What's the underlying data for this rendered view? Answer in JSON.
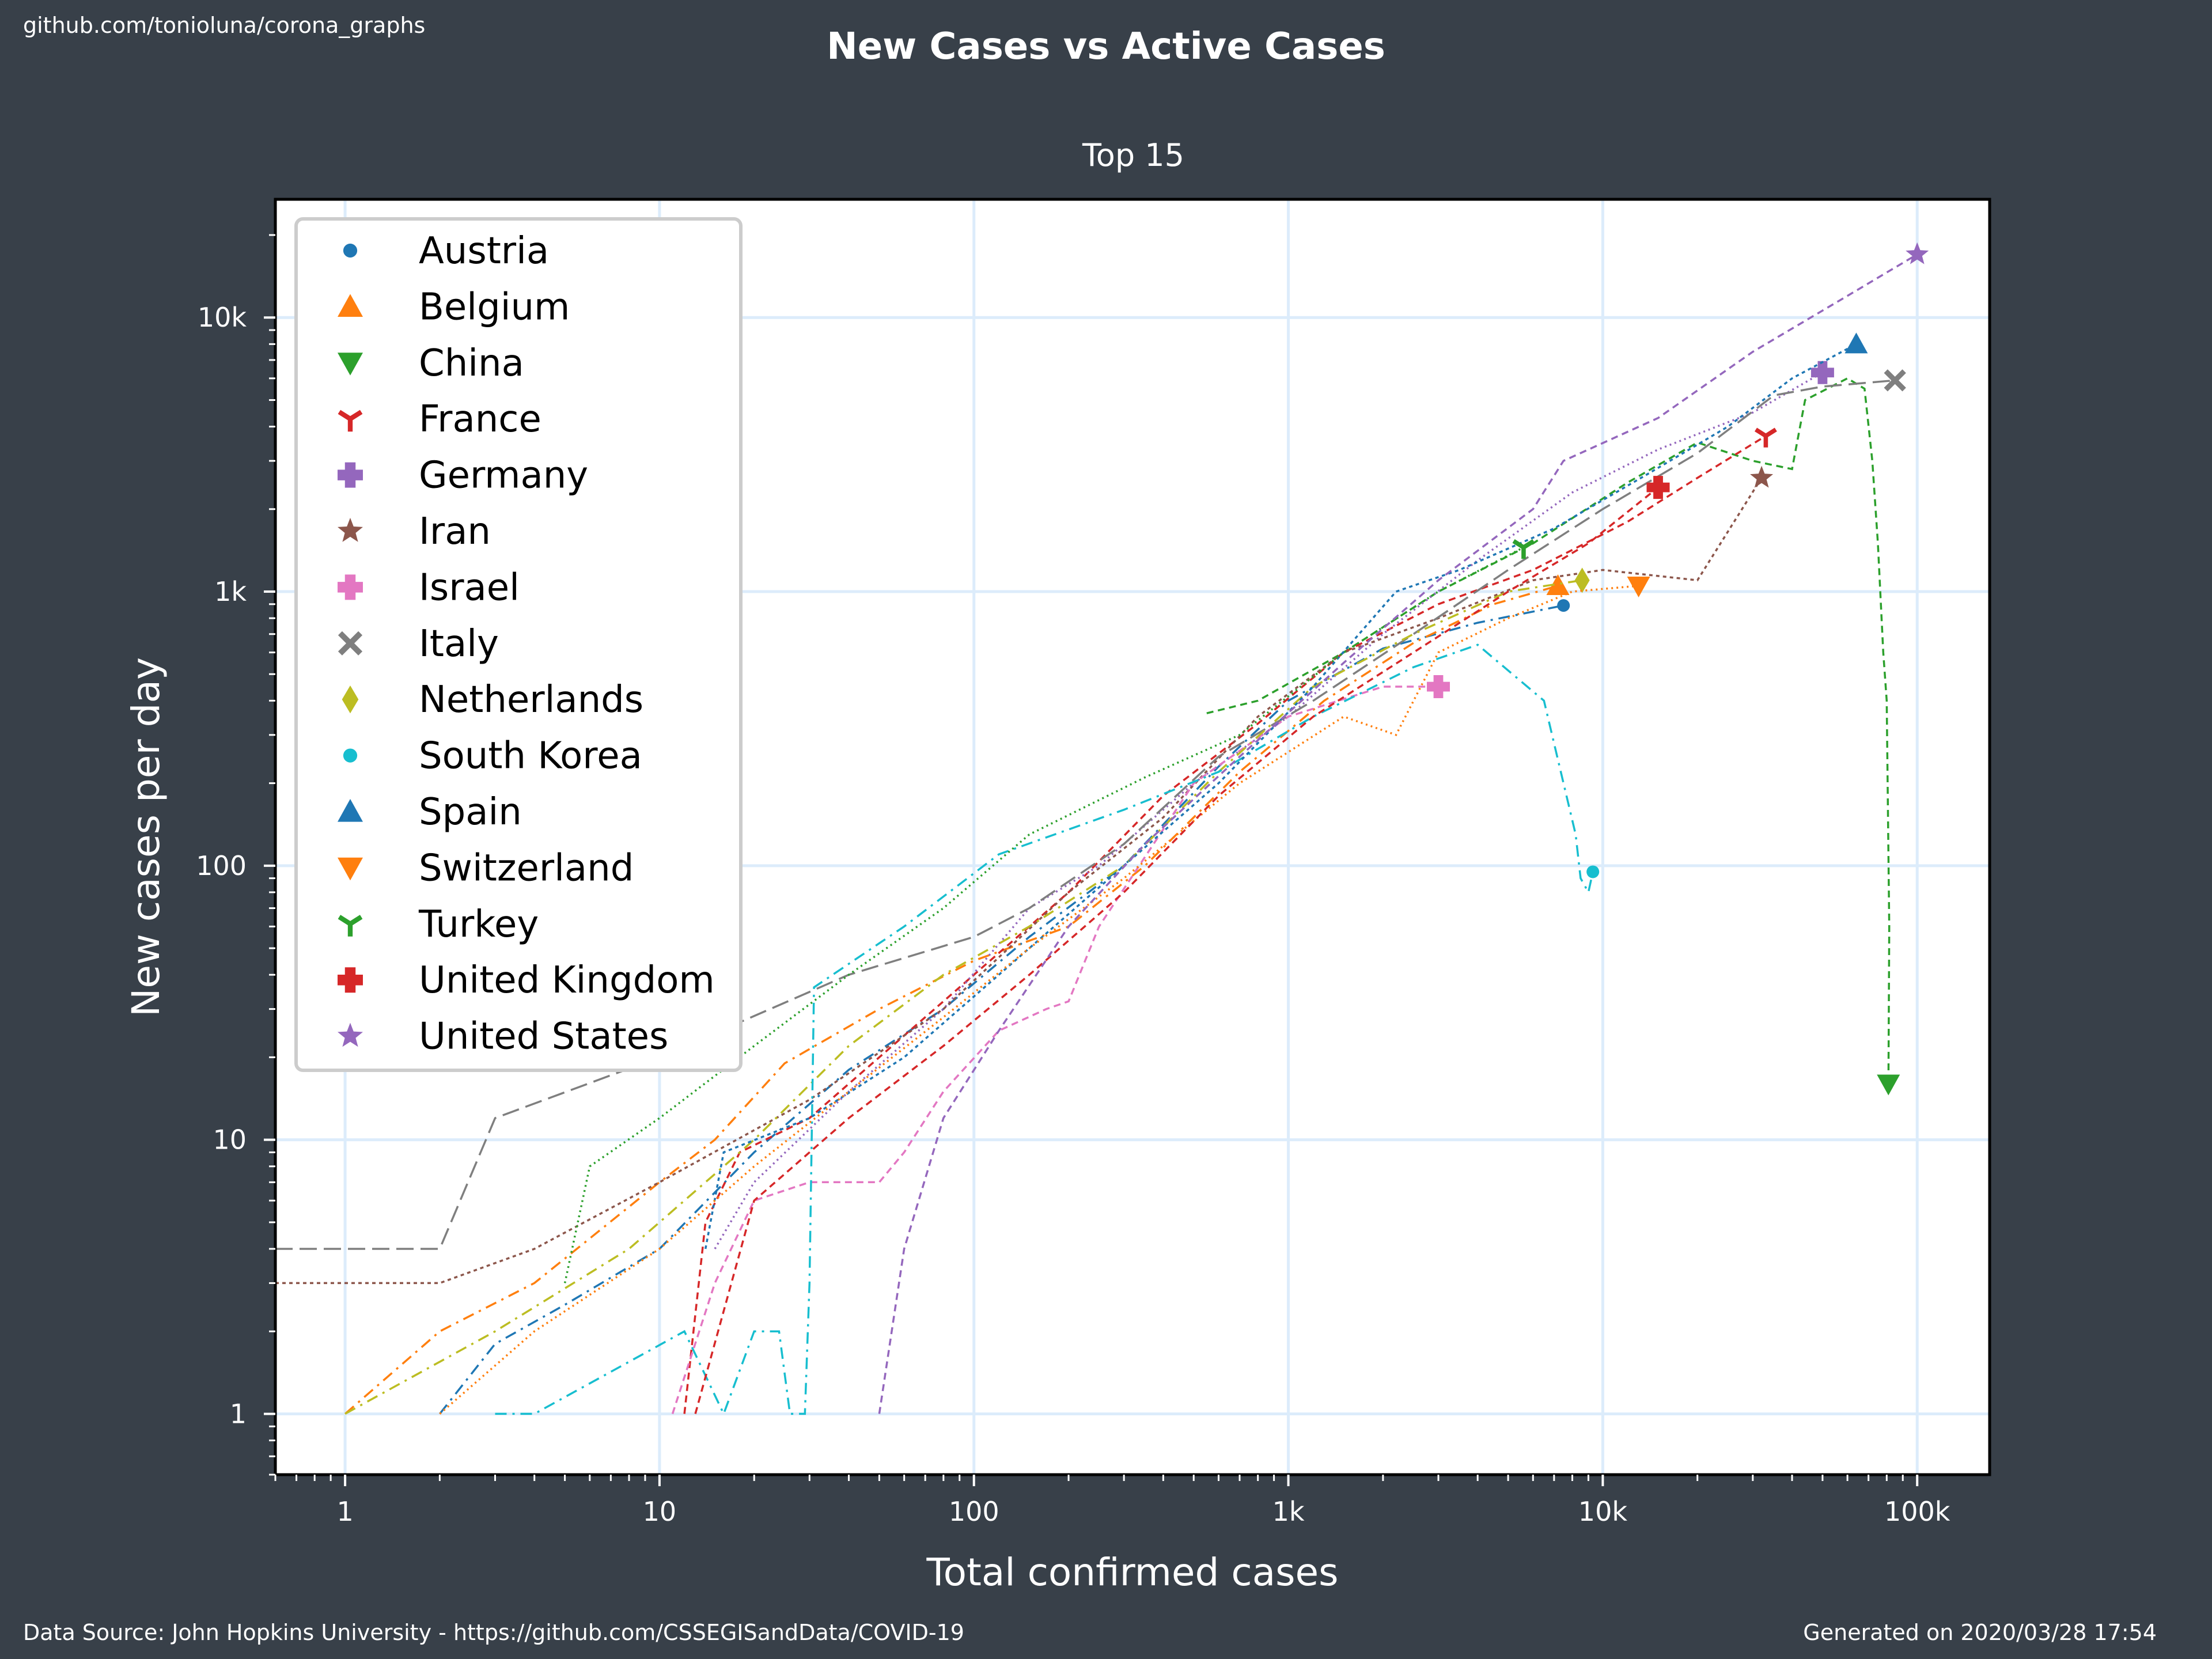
{
  "header": {
    "source_link": "github.com/tonioluna/corona_graphs",
    "title": "New Cases vs Active Cases",
    "subtitle": "Top 15"
  },
  "footer": {
    "data_source": "Data Source: John Hopkins University - https://github.com/CSSEGISandData/COVID-19",
    "generated": "Generated on 2020/03/28 17:54"
  },
  "chart_data": {
    "type": "line",
    "xlabel": "Total confirmed cases",
    "ylabel": "New cases per day",
    "xscale": "log",
    "yscale": "log",
    "xlim": [
      0.6,
      170000
    ],
    "ylim": [
      0.6,
      27000
    ],
    "x_ticks": [
      {
        "value": 1,
        "label": "1"
      },
      {
        "value": 10,
        "label": "10"
      },
      {
        "value": 100,
        "label": "100"
      },
      {
        "value": 1000,
        "label": "1k"
      },
      {
        "value": 10000,
        "label": "10k"
      },
      {
        "value": 100000,
        "label": "100k"
      }
    ],
    "y_ticks": [
      {
        "value": 1,
        "label": "1"
      },
      {
        "value": 10,
        "label": "10"
      },
      {
        "value": 100,
        "label": "100"
      },
      {
        "value": 1000,
        "label": "1k"
      },
      {
        "value": 10000,
        "label": "10k"
      }
    ],
    "grid": true,
    "legend_position": "top-left",
    "series": [
      {
        "name": "Austria",
        "color": "#1f77b4",
        "marker": "circle",
        "dash": "20,10,4,10",
        "points": [
          [
            2,
            1
          ],
          [
            3,
            1.8
          ],
          [
            5,
            2.5
          ],
          [
            10,
            4
          ],
          [
            20,
            9
          ],
          [
            40,
            18
          ],
          [
            80,
            30
          ],
          [
            150,
            55
          ],
          [
            300,
            100
          ],
          [
            600,
            230
          ],
          [
            1000,
            400
          ],
          [
            2000,
            620
          ],
          [
            4000,
            770
          ],
          [
            7500,
            890
          ]
        ]
      },
      {
        "name": "Belgium",
        "color": "#ff7f0e",
        "marker": "triangle-up",
        "dash": "20,10,4,10",
        "points": [
          [
            1,
            1
          ],
          [
            2,
            2
          ],
          [
            4,
            3
          ],
          [
            10,
            7
          ],
          [
            15,
            10
          ],
          [
            25,
            19
          ],
          [
            50,
            30
          ],
          [
            100,
            45
          ],
          [
            200,
            60
          ],
          [
            350,
            100
          ],
          [
            700,
            220
          ],
          [
            1300,
            400
          ],
          [
            2500,
            650
          ],
          [
            4500,
            900
          ],
          [
            7200,
            1050
          ]
        ]
      },
      {
        "name": "China",
        "color": "#2ca02c",
        "marker": "triangle-down",
        "dash": "12,8",
        "points": [
          [
            550,
            360
          ],
          [
            800,
            400
          ],
          [
            1500,
            600
          ],
          [
            3000,
            1000
          ],
          [
            6000,
            1500
          ],
          [
            12000,
            2500
          ],
          [
            20000,
            3500
          ],
          [
            30000,
            3000
          ],
          [
            40000,
            2800
          ],
          [
            44000,
            5000
          ],
          [
            60000,
            6000
          ],
          [
            68000,
            5500
          ],
          [
            72000,
            3000
          ],
          [
            75000,
            1500
          ],
          [
            78000,
            600
          ],
          [
            80000,
            400
          ],
          [
            81500,
            60
          ],
          [
            81000,
            16
          ]
        ]
      },
      {
        "name": "France",
        "color": "#d62728",
        "marker": "tri",
        "dash": "12,8",
        "points": [
          [
            12,
            1
          ],
          [
            14,
            5
          ],
          [
            18,
            9
          ],
          [
            30,
            12
          ],
          [
            50,
            20
          ],
          [
            100,
            40
          ],
          [
            200,
            80
          ],
          [
            400,
            180
          ],
          [
            800,
            330
          ],
          [
            1500,
            600
          ],
          [
            3000,
            900
          ],
          [
            6000,
            1200
          ],
          [
            12000,
            1800
          ],
          [
            20000,
            2600
          ],
          [
            33000,
            3700
          ]
        ]
      },
      {
        "name": "Germany",
        "color": "#9467bd",
        "marker": "plus",
        "dash": "3,6",
        "points": [
          [
            15,
            4
          ],
          [
            20,
            7
          ],
          [
            40,
            15
          ],
          [
            80,
            30
          ],
          [
            150,
            70
          ],
          [
            250,
            100
          ],
          [
            500,
            200
          ],
          [
            1000,
            350
          ],
          [
            2000,
            700
          ],
          [
            4000,
            1300
          ],
          [
            8000,
            2300
          ],
          [
            15000,
            3300
          ],
          [
            30000,
            4500
          ],
          [
            50000,
            6300
          ]
        ]
      },
      {
        "name": "Iran",
        "color": "#8c564b",
        "marker": "star",
        "dash": "6,6",
        "points": [
          [
            0.6,
            3
          ],
          [
            2,
            3
          ],
          [
            4,
            4
          ],
          [
            10,
            7
          ],
          [
            30,
            14
          ],
          [
            80,
            30
          ],
          [
            200,
            80
          ],
          [
            400,
            150
          ],
          [
            800,
            350
          ],
          [
            1500,
            600
          ],
          [
            3000,
            800
          ],
          [
            6000,
            1100
          ],
          [
            10000,
            1200
          ],
          [
            20000,
            1100
          ],
          [
            32000,
            2600
          ]
        ]
      },
      {
        "name": "Israel",
        "color": "#e377c2",
        "marker": "plus",
        "dash": "12,8",
        "points": [
          [
            11,
            1
          ],
          [
            15,
            3
          ],
          [
            20,
            6
          ],
          [
            30,
            7
          ],
          [
            50,
            7
          ],
          [
            60,
            9
          ],
          [
            80,
            15
          ],
          [
            120,
            25
          ],
          [
            170,
            30
          ],
          [
            200,
            32
          ],
          [
            250,
            60
          ],
          [
            500,
            200
          ],
          [
            1000,
            350
          ],
          [
            2000,
            450
          ],
          [
            3000,
            450
          ]
        ]
      },
      {
        "name": "Italy",
        "color": "#7f7f7f",
        "marker": "x",
        "dash": "30,12",
        "points": [
          [
            0.6,
            4
          ],
          [
            2,
            4
          ],
          [
            3,
            12
          ],
          [
            10,
            20
          ],
          [
            40,
            40
          ],
          [
            100,
            55
          ],
          [
            150,
            70
          ],
          [
            300,
            120
          ],
          [
            600,
            250
          ],
          [
            1200,
            400
          ],
          [
            2500,
            700
          ],
          [
            5000,
            1200
          ],
          [
            10000,
            2000
          ],
          [
            20000,
            3200
          ],
          [
            35000,
            5200
          ],
          [
            50000,
            5600
          ],
          [
            85000,
            5900
          ]
        ]
      },
      {
        "name": "Netherlands",
        "color": "#bcbd22",
        "marker": "diamond",
        "dash": "20,10,4,10",
        "points": [
          [
            1,
            1
          ],
          [
            3,
            2
          ],
          [
            8,
            4
          ],
          [
            20,
            10
          ],
          [
            40,
            22
          ],
          [
            80,
            40
          ],
          [
            150,
            60
          ],
          [
            300,
            100
          ],
          [
            600,
            220
          ],
          [
            1200,
            450
          ],
          [
            2500,
            700
          ],
          [
            5000,
            1000
          ],
          [
            8600,
            1100
          ]
        ]
      },
      {
        "name": "South Korea",
        "color": "#17becf",
        "marker": "circle",
        "dash": "20,10,4,10",
        "points": [
          [
            3,
            1
          ],
          [
            4,
            1
          ],
          [
            12,
            2
          ],
          [
            16,
            1
          ],
          [
            20,
            2
          ],
          [
            24,
            2
          ],
          [
            26,
            1
          ],
          [
            29,
            1
          ],
          [
            30,
            3
          ],
          [
            31,
            36
          ],
          [
            60,
            60
          ],
          [
            120,
            110
          ],
          [
            300,
            160
          ],
          [
            600,
            220
          ],
          [
            1200,
            350
          ],
          [
            2500,
            530
          ],
          [
            4000,
            640
          ],
          [
            6500,
            400
          ],
          [
            7500,
            200
          ],
          [
            8200,
            130
          ],
          [
            8500,
            90
          ],
          [
            9000,
            80
          ],
          [
            9300,
            95
          ]
        ]
      },
      {
        "name": "Spain",
        "color": "#1f77b4",
        "marker": "triangle-up",
        "dash": "6,6",
        "points": [
          [
            14,
            4
          ],
          [
            16,
            9
          ],
          [
            30,
            12
          ],
          [
            60,
            20
          ],
          [
            120,
            40
          ],
          [
            300,
            100
          ],
          [
            600,
            200
          ],
          [
            1200,
            450
          ],
          [
            2200,
            1000
          ],
          [
            3500,
            1200
          ],
          [
            7000,
            1700
          ],
          [
            14000,
            2700
          ],
          [
            25000,
            4000
          ],
          [
            40000,
            6000
          ],
          [
            64000,
            8000
          ]
        ]
      },
      {
        "name": "Switzerland",
        "color": "#ff7f0e",
        "marker": "triangle-down",
        "dash": "3,6",
        "points": [
          [
            2,
            1
          ],
          [
            4,
            2
          ],
          [
            10,
            4
          ],
          [
            20,
            8
          ],
          [
            40,
            15
          ],
          [
            80,
            28
          ],
          [
            150,
            50
          ],
          [
            300,
            90
          ],
          [
            700,
            200
          ],
          [
            1500,
            350
          ],
          [
            2200,
            300
          ],
          [
            3000,
            600
          ],
          [
            5000,
            800
          ],
          [
            8000,
            1000
          ],
          [
            13000,
            1050
          ]
        ]
      },
      {
        "name": "Turkey",
        "color": "#2ca02c",
        "marker": "tri",
        "dash": "3,6",
        "points": [
          [
            5,
            3
          ],
          [
            6,
            8
          ],
          [
            10,
            12
          ],
          [
            20,
            22
          ],
          [
            40,
            40
          ],
          [
            80,
            70
          ],
          [
            150,
            130
          ],
          [
            350,
            210
          ],
          [
            700,
            300
          ],
          [
            1500,
            600
          ],
          [
            3000,
            1000
          ],
          [
            5600,
            1450
          ]
        ]
      },
      {
        "name": "United Kingdom",
        "color": "#d62728",
        "marker": "plus",
        "dash": "12,8",
        "points": [
          [
            13,
            1
          ],
          [
            20,
            6
          ],
          [
            40,
            12
          ],
          [
            80,
            22
          ],
          [
            150,
            40
          ],
          [
            300,
            80
          ],
          [
            600,
            180
          ],
          [
            1200,
            350
          ],
          [
            2500,
            600
          ],
          [
            5000,
            1000
          ],
          [
            9000,
            1500
          ],
          [
            15000,
            2400
          ]
        ]
      },
      {
        "name": "United States",
        "color": "#9467bd",
        "marker": "star",
        "dash": "12,8",
        "points": [
          [
            50,
            1
          ],
          [
            60,
            4
          ],
          [
            80,
            12
          ],
          [
            120,
            25
          ],
          [
            200,
            60
          ],
          [
            350,
            120
          ],
          [
            700,
            250
          ],
          [
            1500,
            550
          ],
          [
            3000,
            1100
          ],
          [
            6000,
            2000
          ],
          [
            7500,
            3000
          ],
          [
            15000,
            4300
          ],
          [
            30000,
            7500
          ],
          [
            60000,
            12000
          ],
          [
            100000,
            17000
          ]
        ]
      }
    ]
  }
}
